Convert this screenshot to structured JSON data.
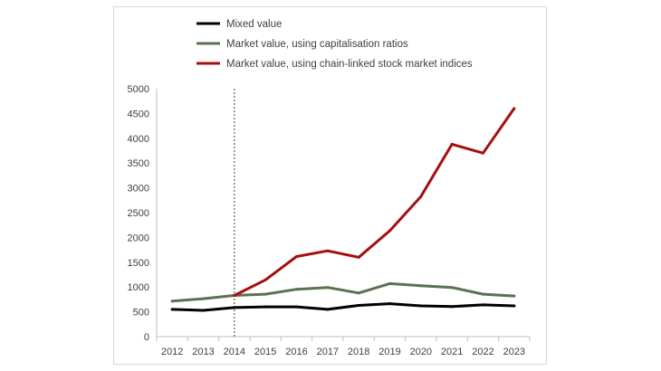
{
  "chart_data": {
    "type": "line",
    "title": "",
    "xlabel": "",
    "ylabel": "",
    "x": [
      "2012",
      "2013",
      "2014",
      "2015",
      "2016",
      "2017",
      "2018",
      "2019",
      "2020",
      "2021",
      "2022",
      "2023"
    ],
    "ylim": [
      0,
      5000
    ],
    "yticks": [
      0,
      500,
      1000,
      1500,
      2000,
      2500,
      3000,
      3500,
      4000,
      4500,
      5000
    ],
    "grid": false,
    "legend": "top",
    "reference_line_x": "2014",
    "series": [
      {
        "name": "Mixed value",
        "color": "#000000",
        "values": [
          550,
          530,
          585,
          600,
          600,
          550,
          630,
          665,
          620,
          605,
          640,
          620
        ]
      },
      {
        "name": "Market value, using capitalisation ratios",
        "color": "#5a7250",
        "values": [
          715,
          765,
          830,
          855,
          955,
          990,
          880,
          1070,
          1025,
          990,
          855,
          820
        ]
      },
      {
        "name": "Market value, using chain-linked stock market indices",
        "color": "#a50f0f",
        "values": [
          null,
          null,
          830,
          1145,
          1615,
          1730,
          1600,
          2135,
          2825,
          3880,
          3700,
          4600
        ]
      }
    ]
  }
}
